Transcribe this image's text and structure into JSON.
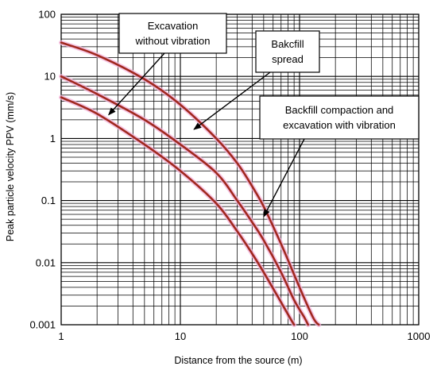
{
  "chart_data": {
    "type": "line",
    "xscale": "log",
    "yscale": "log",
    "xlim": [
      1,
      1000
    ],
    "ylim": [
      0.001,
      100
    ],
    "grid": true,
    "xlabel": "Distance from the source (m)",
    "ylabel": "Peak particle velocity PPV (mm/s)",
    "x_tick_labels": [
      "1",
      "10",
      "100",
      "1000"
    ],
    "y_tick_labels": [
      "0.001",
      "0.01",
      "0.1",
      "1",
      "10",
      "100"
    ],
    "line_color": "#a0281e",
    "glow_color": "#f4b4dc",
    "series": [
      {
        "points": [
          [
            1,
            35
          ],
          [
            2,
            22
          ],
          [
            5,
            9
          ],
          [
            10,
            3.5
          ],
          [
            20,
            1.0
          ],
          [
            30,
            0.4
          ],
          [
            40,
            0.17
          ],
          [
            50,
            0.08
          ],
          [
            70,
            0.02
          ],
          [
            100,
            0.004
          ],
          [
            130,
            0.0013
          ],
          [
            145,
            0.001
          ]
        ]
      },
      {
        "points": [
          [
            1,
            10
          ],
          [
            2,
            5.2
          ],
          [
            5,
            2.0
          ],
          [
            10,
            0.8
          ],
          [
            20,
            0.28
          ],
          [
            30,
            0.1
          ],
          [
            40,
            0.045
          ],
          [
            50,
            0.023
          ],
          [
            70,
            0.007
          ],
          [
            90,
            0.0025
          ],
          [
            110,
            0.0013
          ],
          [
            118,
            0.001
          ]
        ]
      },
      {
        "points": [
          [
            1,
            4.6
          ],
          [
            2,
            2.5
          ],
          [
            5,
            0.8
          ],
          [
            10,
            0.3
          ],
          [
            20,
            0.09
          ],
          [
            30,
            0.032
          ],
          [
            40,
            0.014
          ],
          [
            50,
            0.007
          ],
          [
            70,
            0.0023
          ],
          [
            85,
            0.0012
          ],
          [
            90,
            0.001
          ]
        ]
      }
    ],
    "annotations": [
      {
        "text_lines": [
          "Excavation",
          "without  vibration"
        ],
        "arrow_to": [
          2.5,
          2.4
        ]
      },
      {
        "text_lines": [
          "Bakcfill",
          "spread"
        ],
        "arrow_to": [
          13,
          1.4
        ]
      },
      {
        "text_lines": [
          "Backfill compaction and",
          "excavation with  vibration"
        ],
        "arrow_to": [
          50,
          0.055
        ]
      }
    ]
  }
}
